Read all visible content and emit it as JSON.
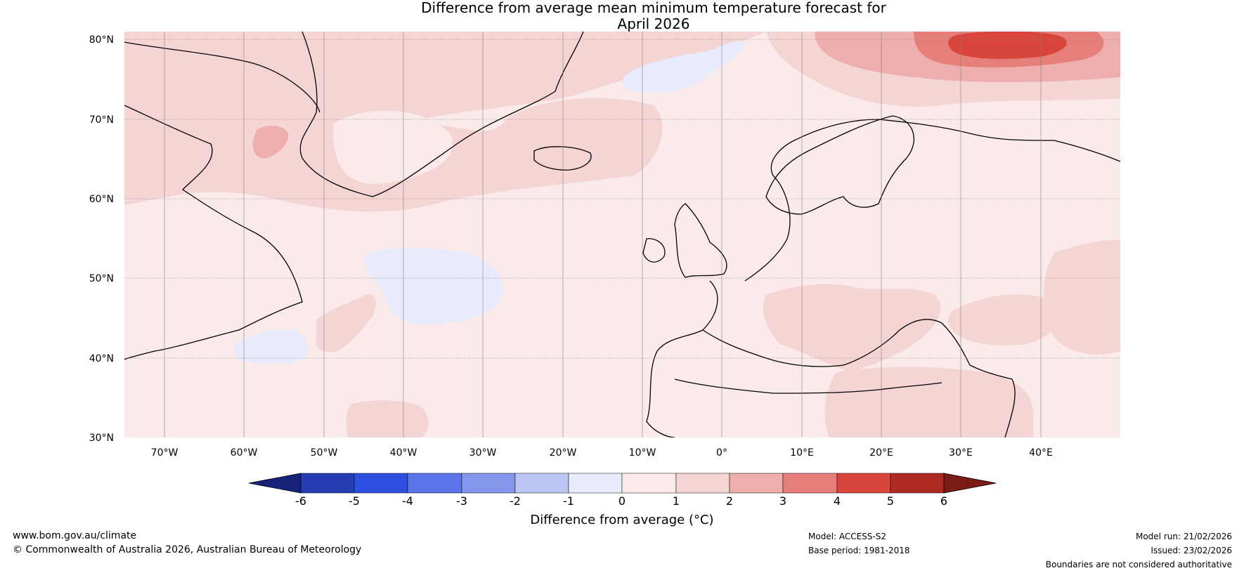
{
  "map": {
    "title_line1": "Difference from average mean minimum temperature forecast for",
    "title_line2": "April 2026",
    "lat_labels": [
      "80°N",
      "70°N",
      "60°N",
      "50°N",
      "40°N",
      "30°N"
    ],
    "lon_labels": [
      "70°W",
      "60°W",
      "50°W",
      "40°W",
      "30°W",
      "20°W",
      "10°W",
      "0°",
      "10°E",
      "20°E",
      "30°E",
      "40°E"
    ],
    "colorbar": {
      "title": "Difference from average (°C)",
      "ticks": [
        "-6",
        "-5",
        "-4",
        "-3",
        "-2",
        "-1",
        "0",
        "1",
        "2",
        "3",
        "4",
        "5",
        "6"
      ],
      "colors": [
        "#17237a",
        "#263cb3",
        "#2d4fe0",
        "#5a73e6",
        "#8497ec",
        "#bcc6f4",
        "#e8ebfb",
        "#fbeaea",
        "#f5d4d4",
        "#eeaeae",
        "#e67f7a",
        "#d9453a",
        "#ae2a22",
        "#7a1b16"
      ]
    }
  },
  "footer": {
    "website": "www.bom.gov.au/climate",
    "copyright": "© Commonwealth of Australia 2026, Australian Bureau of Meteorology",
    "model": "Model: ACCESS-S2",
    "base_period": "Base period: 1981-2018",
    "model_run": "Model run: 21/02/2026",
    "issued": "Issued: 23/02/2026",
    "disclaimer": "Boundaries are not considered authoritative"
  }
}
